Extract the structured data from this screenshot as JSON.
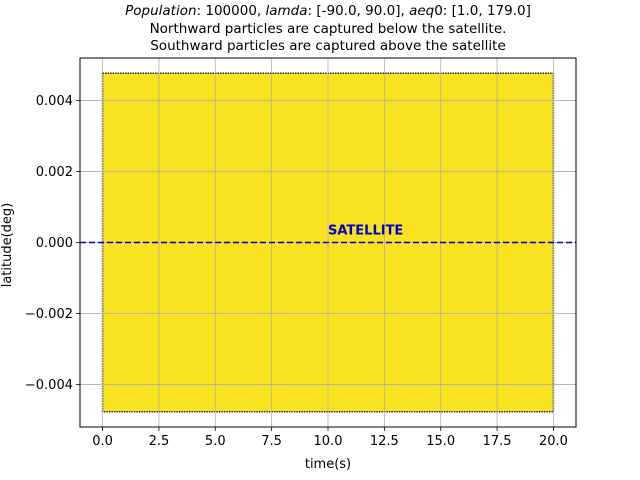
{
  "chart_data": {
    "type": "scatter",
    "title": {
      "line1": {
        "population_label": "Population",
        "population_value": ": 100000, ",
        "lamda_label": "lamda",
        "lamda_value": ": [-90.0, 90.0], ",
        "aeq_label": "aeq",
        "aeq_value": "0: [1.0, 179.0]"
      },
      "line2": "Northward particles are captured below the satellite.",
      "line3": "Southward particles are captured above the satellite"
    },
    "xlabel": "time(s)",
    "ylabel": "latitude(deg)",
    "xlim": [
      -1.0,
      21.0
    ],
    "ylim": [
      -0.0052,
      0.0052
    ],
    "xticks": [
      0.0,
      2.5,
      5.0,
      7.5,
      10.0,
      12.5,
      15.0,
      17.5,
      20.0
    ],
    "xtick_labels": [
      "0.0",
      "2.5",
      "5.0",
      "7.5",
      "10.0",
      "12.5",
      "15.0",
      "17.5",
      "20.0"
    ],
    "yticks": [
      -0.004,
      -0.002,
      0.0,
      0.002,
      0.004
    ],
    "ytick_labels": [
      "−0.004",
      "−0.002",
      "0.000",
      "0.002",
      "0.004"
    ],
    "grid": true,
    "scatter_region": {
      "x_range": [
        0.0,
        20.0
      ],
      "y_range": [
        -0.00477,
        0.00477
      ],
      "fill_color": "#f9e21f",
      "edge_color": "#2b2b2b"
    },
    "hline": {
      "y": 0.0,
      "color": "#0000cc",
      "style": "dashed"
    },
    "annotation": {
      "text": "SATELLITE",
      "x": 10.0,
      "y": 0.00022,
      "color": "#0000cc"
    }
  }
}
